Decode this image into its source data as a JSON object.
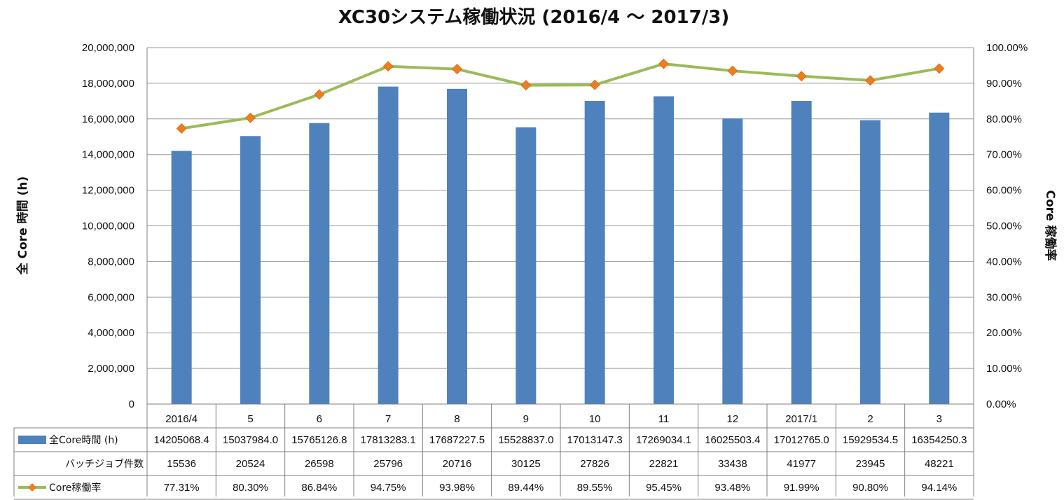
{
  "chart_data": {
    "type": "bar",
    "title": "XC30システム稼働状況 (2016/4 ～ 2017/3)",
    "ylabel_left": "全 Core 時間 (h)",
    "ylabel_right": "Core 稼働率",
    "ylim_left": [
      0,
      20000000
    ],
    "ylim_right": [
      0,
      100
    ],
    "left_ticks": [
      "0",
      "2,000,000",
      "4,000,000",
      "6,000,000",
      "8,000,000",
      "10,000,000",
      "12,000,000",
      "14,000,000",
      "16,000,000",
      "18,000,000",
      "20,000,000"
    ],
    "right_ticks": [
      "0.00%",
      "10.00%",
      "20.00%",
      "30.00%",
      "40.00%",
      "50.00%",
      "60.00%",
      "70.00%",
      "80.00%",
      "90.00%",
      "100.00%"
    ],
    "grid": "horizontal",
    "categories": [
      "2016/4",
      "5",
      "6",
      "7",
      "8",
      "9",
      "10",
      "11",
      "12",
      "2017/1",
      "2",
      "3"
    ],
    "series": [
      {
        "name": "全Core時間 (h)",
        "kind": "bar",
        "axis": "left",
        "color": "#4f81bd",
        "values": [
          14205068.4,
          15037984.0,
          15765126.8,
          17813283.1,
          17687227.5,
          15528837.0,
          17013147.3,
          17269034.1,
          16025503.4,
          17012765.0,
          15929534.5,
          16354250.3
        ],
        "labels": [
          "14205068.4",
          "15037984.0",
          "15765126.8",
          "17813283.1",
          "17687227.5",
          "15528837.0",
          "17013147.3",
          "17269034.1",
          "16025503.4",
          "17012765.0",
          "15929534.5",
          "16354250.3"
        ]
      },
      {
        "name": "Core稼働率",
        "kind": "line",
        "axis": "right",
        "color": "#9bbb59",
        "marker_color": "#f07c1e",
        "values": [
          77.31,
          80.3,
          86.84,
          94.75,
          93.98,
          89.44,
          89.55,
          95.45,
          93.48,
          91.99,
          90.8,
          94.14
        ],
        "labels": [
          "77.31%",
          "80.30%",
          "86.84%",
          "94.75%",
          "93.98%",
          "89.44%",
          "89.55%",
          "95.45%",
          "93.48%",
          "91.99%",
          "90.80%",
          "94.14%"
        ]
      }
    ],
    "table_rows": [
      {
        "label": "バッチジョブ件数",
        "values": [
          "15536",
          "20524",
          "26598",
          "25796",
          "20716",
          "30125",
          "27826",
          "22821",
          "33438",
          "41977",
          "23945",
          "48221"
        ]
      }
    ]
  }
}
